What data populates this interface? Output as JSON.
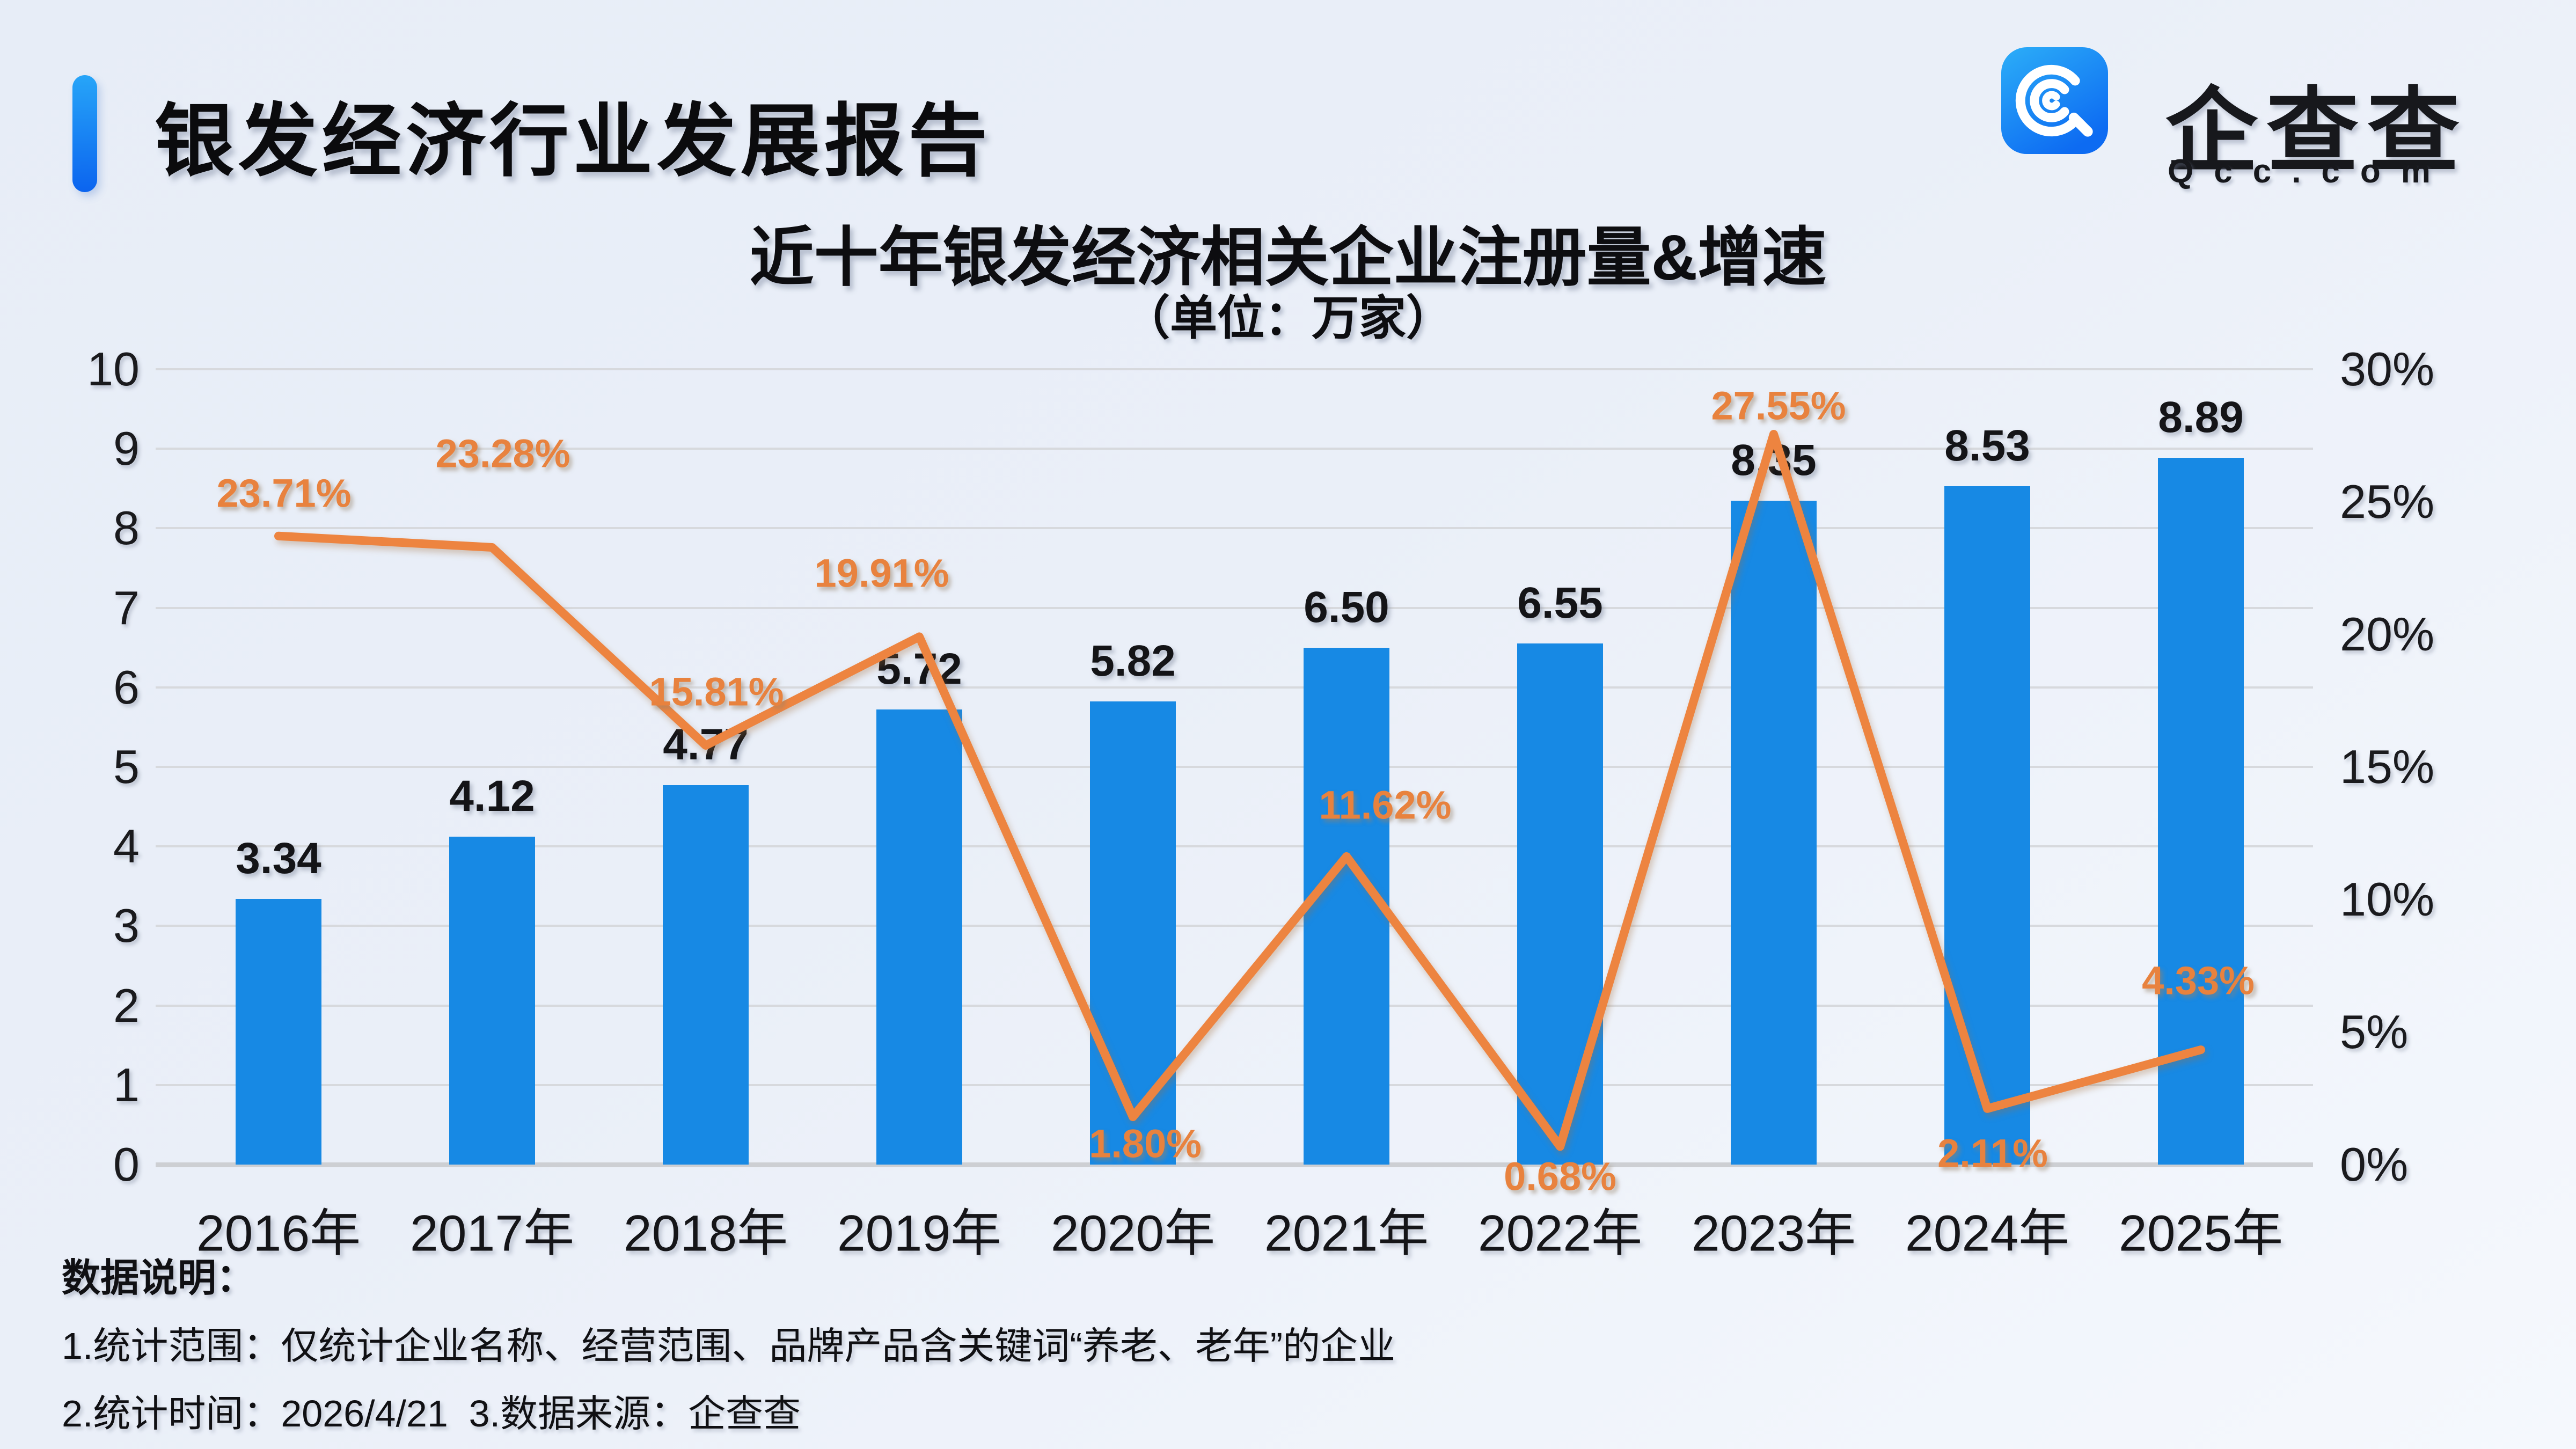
{
  "header": {
    "title": "银发经济行业发展报告",
    "logo": {
      "name": "企查查",
      "domain": "Qcc.com",
      "brand_color": "#1285f0"
    }
  },
  "chart": {
    "title": "近十年银发经济相关企业注册量&增速",
    "subtitle": "（单位：万家）"
  },
  "chart_data": {
    "type": "bar+line",
    "title": "近十年银发经济相关企业注册量&增速",
    "unit": "万家",
    "categories": [
      "2016年",
      "2017年",
      "2018年",
      "2019年",
      "2020年",
      "2021年",
      "2022年",
      "2023年",
      "2024年",
      "2025年"
    ],
    "series": [
      {
        "name": "企业注册量",
        "type": "bar",
        "axis": "left",
        "color": "#1789e4",
        "values": [
          3.34,
          4.12,
          4.77,
          5.72,
          5.82,
          6.5,
          6.55,
          8.35,
          8.53,
          8.89
        ],
        "labels": [
          "3.34",
          "4.12",
          "4.77",
          "5.72",
          "5.82",
          "6.50",
          "6.55",
          "8.35",
          "8.53",
          "8.89"
        ]
      },
      {
        "name": "增速",
        "type": "line",
        "axis": "right",
        "color": "#ed8440",
        "label_color": "#e8823e",
        "values": [
          23.71,
          23.28,
          15.81,
          19.91,
          1.8,
          11.62,
          0.68,
          27.55,
          2.11,
          4.33
        ],
        "labels": [
          "23.71%",
          "23.28%",
          "15.81%",
          "19.91%",
          "1.80%",
          "11.62%",
          "0.68%",
          "27.55%",
          "2.11%",
          "4.33%"
        ]
      }
    ],
    "left_axis": {
      "min": 0,
      "max": 10,
      "ticks": [
        "0",
        "1",
        "2",
        "3",
        "4",
        "5",
        "6",
        "7",
        "8",
        "9",
        "10"
      ]
    },
    "right_axis": {
      "min": 0,
      "max": 30,
      "ticks": [
        "0%",
        "5%",
        "10%",
        "15%",
        "20%",
        "25%",
        "30%"
      ]
    },
    "grid": true,
    "legend": false
  },
  "footer": {
    "heading": "数据说明：",
    "notes": [
      "1.统计范围：仅统计企业名称、经营范围、品牌产品含关键词“养老、老年”的企业",
      "2.统计时间：2026/4/21  3.数据来源：企查查"
    ]
  }
}
